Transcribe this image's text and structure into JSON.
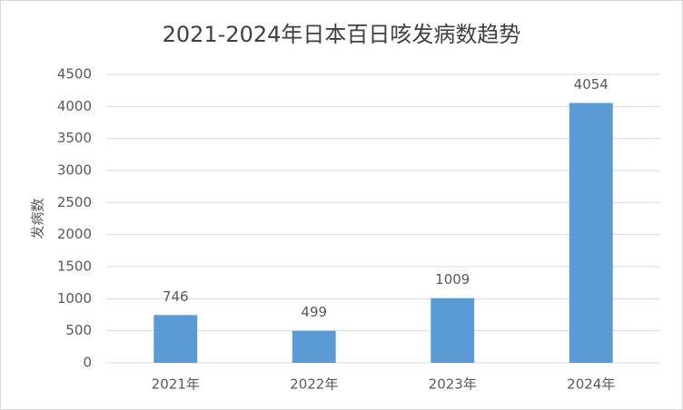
{
  "chart_data": {
    "type": "bar",
    "title": "2021-2024年日本百日咳发病数趋势",
    "y_label": "发病数",
    "categories": [
      "2021年",
      "2022年",
      "2023年",
      "2024年"
    ],
    "values": [
      746,
      499,
      1009,
      4054
    ],
    "color": "#5b9bd5",
    "ylim": [
      0,
      4500
    ],
    "yticks": [
      0,
      500,
      1000,
      1500,
      2000,
      2500,
      3000,
      3500,
      4000,
      4500
    ],
    "grid": true,
    "data_labels": true
  }
}
